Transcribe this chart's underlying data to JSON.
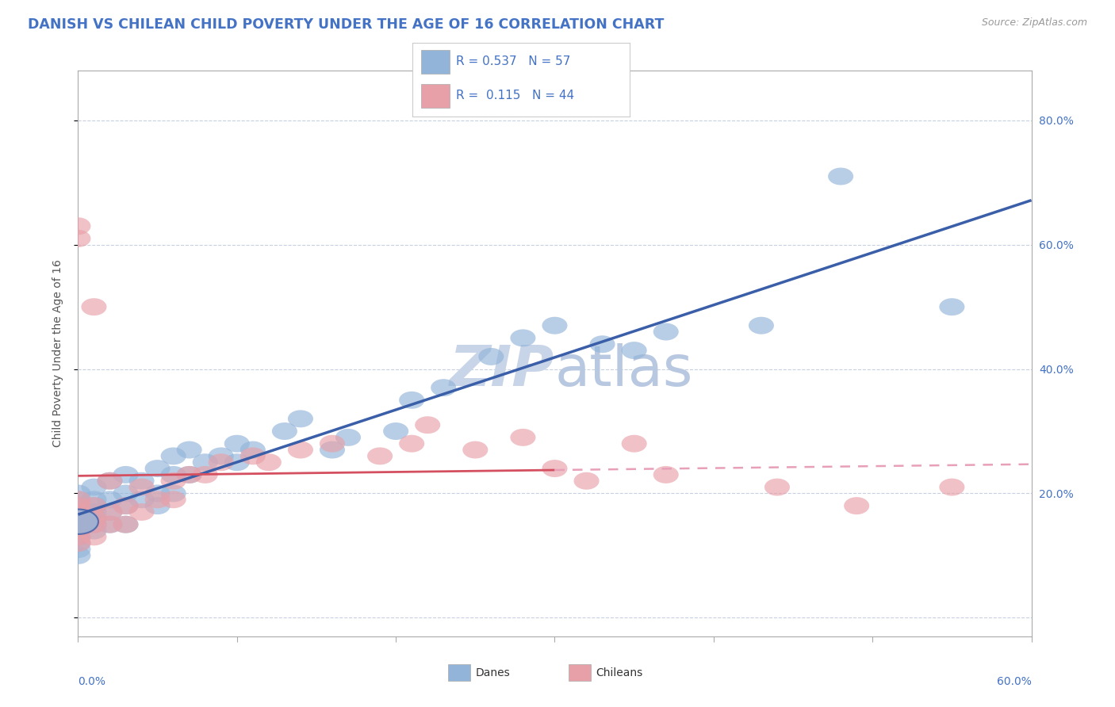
{
  "title": "DANISH VS CHILEAN CHILD POVERTY UNDER THE AGE OF 16 CORRELATION CHART",
  "source": "Source: ZipAtlas.com",
  "ylabel": "Child Poverty Under the Age of 16",
  "xlim": [
    0.0,
    0.6
  ],
  "ylim": [
    -0.03,
    0.88
  ],
  "blue_color": "#92b4d9",
  "pink_color": "#e8a0a8",
  "blue_line_color": "#3a5fa8",
  "pink_line_color": "#d45060",
  "pink_dash_color": "#e8a0b8",
  "title_color": "#4472c4",
  "watermark_color": "#c8d4e8",
  "bg_color": "#ffffff",
  "plot_bg_color": "#ffffff",
  "grid_color": "#c8d0e0",
  "danes_x": [
    0.0,
    0.0,
    0.0,
    0.0,
    0.0,
    0.0,
    0.0,
    0.0,
    0.0,
    0.0,
    0.0,
    0.01,
    0.01,
    0.01,
    0.01,
    0.01,
    0.01,
    0.01,
    0.02,
    0.02,
    0.02,
    0.02,
    0.03,
    0.03,
    0.03,
    0.03,
    0.04,
    0.04,
    0.05,
    0.05,
    0.05,
    0.06,
    0.06,
    0.06,
    0.07,
    0.07,
    0.08,
    0.09,
    0.1,
    0.1,
    0.11,
    0.13,
    0.14,
    0.16,
    0.17,
    0.2,
    0.21,
    0.23,
    0.26,
    0.28,
    0.3,
    0.33,
    0.35,
    0.37,
    0.43,
    0.48,
    0.55
  ],
  "danes_y": [
    0.1,
    0.11,
    0.12,
    0.13,
    0.14,
    0.15,
    0.16,
    0.17,
    0.18,
    0.19,
    0.2,
    0.14,
    0.15,
    0.16,
    0.17,
    0.18,
    0.19,
    0.21,
    0.15,
    0.17,
    0.19,
    0.22,
    0.15,
    0.18,
    0.2,
    0.23,
    0.19,
    0.22,
    0.18,
    0.2,
    0.24,
    0.2,
    0.23,
    0.26,
    0.23,
    0.27,
    0.25,
    0.26,
    0.25,
    0.28,
    0.27,
    0.3,
    0.32,
    0.27,
    0.29,
    0.3,
    0.35,
    0.37,
    0.42,
    0.45,
    0.47,
    0.44,
    0.43,
    0.46,
    0.47,
    0.71,
    0.5
  ],
  "chileans_x": [
    0.0,
    0.0,
    0.0,
    0.0,
    0.0,
    0.0,
    0.0,
    0.0,
    0.0,
    0.0,
    0.01,
    0.01,
    0.01,
    0.01,
    0.01,
    0.02,
    0.02,
    0.02,
    0.03,
    0.03,
    0.04,
    0.04,
    0.05,
    0.06,
    0.06,
    0.07,
    0.08,
    0.09,
    0.11,
    0.12,
    0.14,
    0.16,
    0.19,
    0.21,
    0.22,
    0.25,
    0.28,
    0.3,
    0.32,
    0.35,
    0.37,
    0.44,
    0.49,
    0.55
  ],
  "chileans_y": [
    0.12,
    0.13,
    0.14,
    0.15,
    0.16,
    0.17,
    0.18,
    0.19,
    0.61,
    0.63,
    0.13,
    0.15,
    0.16,
    0.18,
    0.5,
    0.15,
    0.17,
    0.22,
    0.15,
    0.18,
    0.17,
    0.21,
    0.19,
    0.19,
    0.22,
    0.23,
    0.23,
    0.25,
    0.26,
    0.25,
    0.27,
    0.28,
    0.26,
    0.28,
    0.31,
    0.27,
    0.29,
    0.24,
    0.22,
    0.28,
    0.23,
    0.21,
    0.18,
    0.21
  ],
  "danes_R": 0.537,
  "chileans_R": 0.115
}
